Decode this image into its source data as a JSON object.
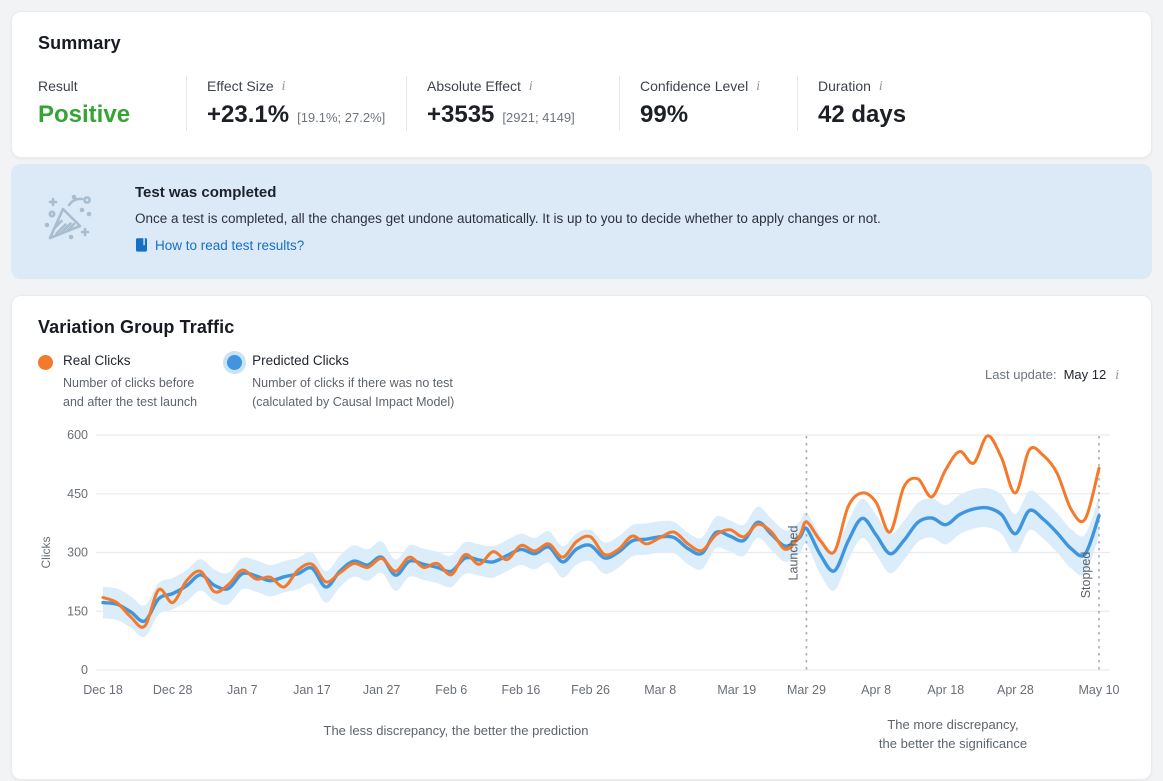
{
  "summary": {
    "title": "Summary",
    "metrics": [
      {
        "label": "Result",
        "value": "Positive",
        "sub": "",
        "value_color": "#34a534"
      },
      {
        "label": "Effect Size",
        "value": "+23.1%",
        "sub": "[19.1%; 27.2%]"
      },
      {
        "label": "Absolute Effect",
        "value": "+3535",
        "sub": "[2921; 4149]"
      },
      {
        "label": "Confidence Level",
        "value": "99%",
        "sub": ""
      },
      {
        "label": "Duration",
        "value": "42 days",
        "sub": ""
      }
    ]
  },
  "banner": {
    "title": "Test was completed",
    "body": "Once a test is completed, all the changes get undone automatically. It is up to you to decide whether to apply changes or not.",
    "link": "How to read test results?",
    "icon": "party-popper-icon",
    "background": "#dce9f7",
    "link_color": "#1570c4"
  },
  "chart_card": {
    "title": "Variation Group Traffic",
    "legend": [
      {
        "label": "Real Clicks",
        "color": "#f5792b",
        "desc_line1": "Number of clicks before",
        "desc_line2": "and after the test launch"
      },
      {
        "label": "Predicted Clicks",
        "color": "#3f96de",
        "desc_line1": "Number of clicks if there was no test",
        "desc_line2": "(calculated by Causal Impact Model)"
      }
    ],
    "last_update_label": "Last update:",
    "last_update_value": "May 12"
  },
  "chart_data": {
    "type": "line",
    "title": "Variation Group Traffic",
    "xlabel": "",
    "ylabel": "Clicks",
    "ylim": [
      0,
      600
    ],
    "yticks": [
      0,
      150,
      300,
      450,
      600
    ],
    "grid": true,
    "x_unit": "days since Dec 18",
    "x_ticks": [
      {
        "day": 0,
        "label": "Dec 18"
      },
      {
        "day": 10,
        "label": "Dec 28"
      },
      {
        "day": 20,
        "label": "Jan 7"
      },
      {
        "day": 30,
        "label": "Jan 17"
      },
      {
        "day": 40,
        "label": "Jan 27"
      },
      {
        "day": 50,
        "label": "Feb 6"
      },
      {
        "day": 60,
        "label": "Feb 16"
      },
      {
        "day": 70,
        "label": "Feb 26"
      },
      {
        "day": 80,
        "label": "Mar 8"
      },
      {
        "day": 91,
        "label": "Mar 19"
      },
      {
        "day": 101,
        "label": "Mar 29"
      },
      {
        "day": 111,
        "label": "Apr 8"
      },
      {
        "day": 121,
        "label": "Apr 18"
      },
      {
        "day": 131,
        "label": "Apr 28"
      },
      {
        "day": 143,
        "label": "May 10"
      }
    ],
    "markers": [
      {
        "day": 101,
        "label": "Launched"
      },
      {
        "day": 143,
        "label": "Stopped"
      }
    ],
    "series": [
      {
        "name": "Real Clicks",
        "color": "#f5792b"
      },
      {
        "name": "Predicted Clicks",
        "color": "#3f96de",
        "band_color": "#d9ebfa"
      }
    ],
    "legend_position": "top-left",
    "columns": [
      "date",
      "day",
      "real",
      "predicted",
      "pred_lo",
      "pred_hi"
    ],
    "rows": [
      [
        "Dec 18",
        0,
        185,
        172,
        132,
        212
      ],
      [
        "Dec 20",
        2,
        172,
        168,
        128,
        208
      ],
      [
        "Dec 22",
        4,
        135,
        148,
        108,
        188
      ],
      [
        "Dec 24",
        6,
        112,
        125,
        85,
        165
      ],
      [
        "Dec 26",
        8,
        205,
        182,
        142,
        222
      ],
      [
        "Dec 28",
        10,
        172,
        195,
        155,
        235
      ],
      [
        "Dec 30",
        12,
        228,
        215,
        175,
        255
      ],
      [
        "Jan 1",
        14,
        252,
        243,
        203,
        283
      ],
      [
        "Jan 3",
        16,
        200,
        216,
        176,
        256
      ],
      [
        "Jan 5",
        18,
        218,
        208,
        168,
        248
      ],
      [
        "Jan 7",
        20,
        255,
        246,
        206,
        286
      ],
      [
        "Jan 9",
        22,
        232,
        240,
        200,
        280
      ],
      [
        "Jan 11",
        24,
        237,
        228,
        188,
        268
      ],
      [
        "Jan 13",
        26,
        212,
        238,
        198,
        278
      ],
      [
        "Jan 15",
        28,
        255,
        246,
        206,
        286
      ],
      [
        "Jan 17",
        30,
        270,
        260,
        220,
        300
      ],
      [
        "Jan 19",
        32,
        225,
        212,
        172,
        252
      ],
      [
        "Jan 21",
        34,
        248,
        252,
        212,
        292
      ],
      [
        "Jan 23",
        36,
        272,
        278,
        238,
        318
      ],
      [
        "Jan 25",
        38,
        262,
        268,
        228,
        308
      ],
      [
        "Jan 27",
        40,
        285,
        288,
        248,
        328
      ],
      [
        "Jan 29",
        42,
        252,
        242,
        202,
        282
      ],
      [
        "Jan 31",
        44,
        288,
        278,
        238,
        318
      ],
      [
        "Feb 2",
        46,
        262,
        270,
        230,
        310
      ],
      [
        "Feb 4",
        48,
        272,
        262,
        222,
        302
      ],
      [
        "Feb 6",
        50,
        243,
        252,
        212,
        292
      ],
      [
        "Feb 8",
        52,
        295,
        286,
        246,
        326
      ],
      [
        "Feb 10",
        54,
        270,
        281,
        241,
        321
      ],
      [
        "Feb 12",
        56,
        302,
        276,
        236,
        316
      ],
      [
        "Feb 14",
        58,
        282,
        292,
        252,
        332
      ],
      [
        "Feb 16",
        60,
        318,
        308,
        268,
        348
      ],
      [
        "Feb 18",
        62,
        304,
        297,
        257,
        337
      ],
      [
        "Feb 20",
        64,
        322,
        314,
        274,
        354
      ],
      [
        "Feb 22",
        66,
        288,
        276,
        236,
        316
      ],
      [
        "Feb 24",
        68,
        328,
        309,
        269,
        349
      ],
      [
        "Feb 26",
        70,
        340,
        318,
        278,
        358
      ],
      [
        "Feb 28",
        72,
        295,
        286,
        246,
        326
      ],
      [
        "Mar 2",
        74,
        308,
        301,
        261,
        341
      ],
      [
        "Mar 4",
        76,
        342,
        330,
        290,
        370
      ],
      [
        "Mar 6",
        78,
        322,
        334,
        294,
        374
      ],
      [
        "Mar 8",
        80,
        338,
        340,
        300,
        380
      ],
      [
        "Mar 10",
        82,
        352,
        338,
        298,
        378
      ],
      [
        "Mar 12",
        84,
        322,
        310,
        270,
        350
      ],
      [
        "Mar 14",
        86,
        305,
        298,
        258,
        338
      ],
      [
        "Mar 16",
        88,
        345,
        351,
        311,
        391
      ],
      [
        "Mar 18",
        90,
        358,
        342,
        302,
        382
      ],
      [
        "Mar 20",
        92,
        340,
        331,
        291,
        371
      ],
      [
        "Mar 22",
        94,
        372,
        377,
        337,
        417
      ],
      [
        "Mar 24",
        96,
        352,
        346,
        306,
        386
      ],
      [
        "Mar 26",
        98,
        308,
        316,
        276,
        356
      ],
      [
        "Mar 28",
        100,
        342,
        338,
        298,
        378
      ],
      [
        "Mar 29",
        101,
        378,
        361,
        321,
        401
      ],
      [
        "Mar 31",
        103,
        330,
        294,
        244,
        344
      ],
      [
        "Apr 2",
        105,
        302,
        253,
        203,
        303
      ],
      [
        "Apr 4",
        107,
        418,
        330,
        280,
        380
      ],
      [
        "Apr 6",
        109,
        452,
        387,
        337,
        437
      ],
      [
        "Apr 8",
        111,
        428,
        345,
        295,
        395
      ],
      [
        "Apr 10",
        113,
        352,
        297,
        247,
        347
      ],
      [
        "Apr 12",
        115,
        468,
        331,
        281,
        381
      ],
      [
        "Apr 14",
        117,
        488,
        377,
        327,
        427
      ],
      [
        "Apr 16",
        119,
        442,
        388,
        338,
        438
      ],
      [
        "Apr 18",
        121,
        512,
        371,
        321,
        421
      ],
      [
        "Apr 20",
        123,
        558,
        397,
        347,
        447
      ],
      [
        "Apr 22",
        125,
        528,
        411,
        361,
        461
      ],
      [
        "Apr 24",
        127,
        598,
        414,
        364,
        464
      ],
      [
        "Apr 26",
        129,
        542,
        397,
        347,
        447
      ],
      [
        "Apr 28",
        131,
        452,
        348,
        298,
        398
      ],
      [
        "Apr 30",
        133,
        562,
        407,
        357,
        457
      ],
      [
        "May 2",
        135,
        548,
        385,
        335,
        435
      ],
      [
        "May 4",
        137,
        502,
        350,
        300,
        400
      ],
      [
        "May 6",
        139,
        410,
        310,
        260,
        360
      ],
      [
        "May 8",
        141,
        385,
        296,
        246,
        346
      ],
      [
        "May 10",
        143,
        515,
        394,
        344,
        444
      ]
    ],
    "annotations": [
      {
        "lines": [
          "The less discrepancy, the better the prediction"
        ],
        "position": "below-pre-period"
      },
      {
        "lines": [
          "The more discrepancy,",
          "the better the significance"
        ],
        "position": "below-post-period"
      }
    ]
  }
}
